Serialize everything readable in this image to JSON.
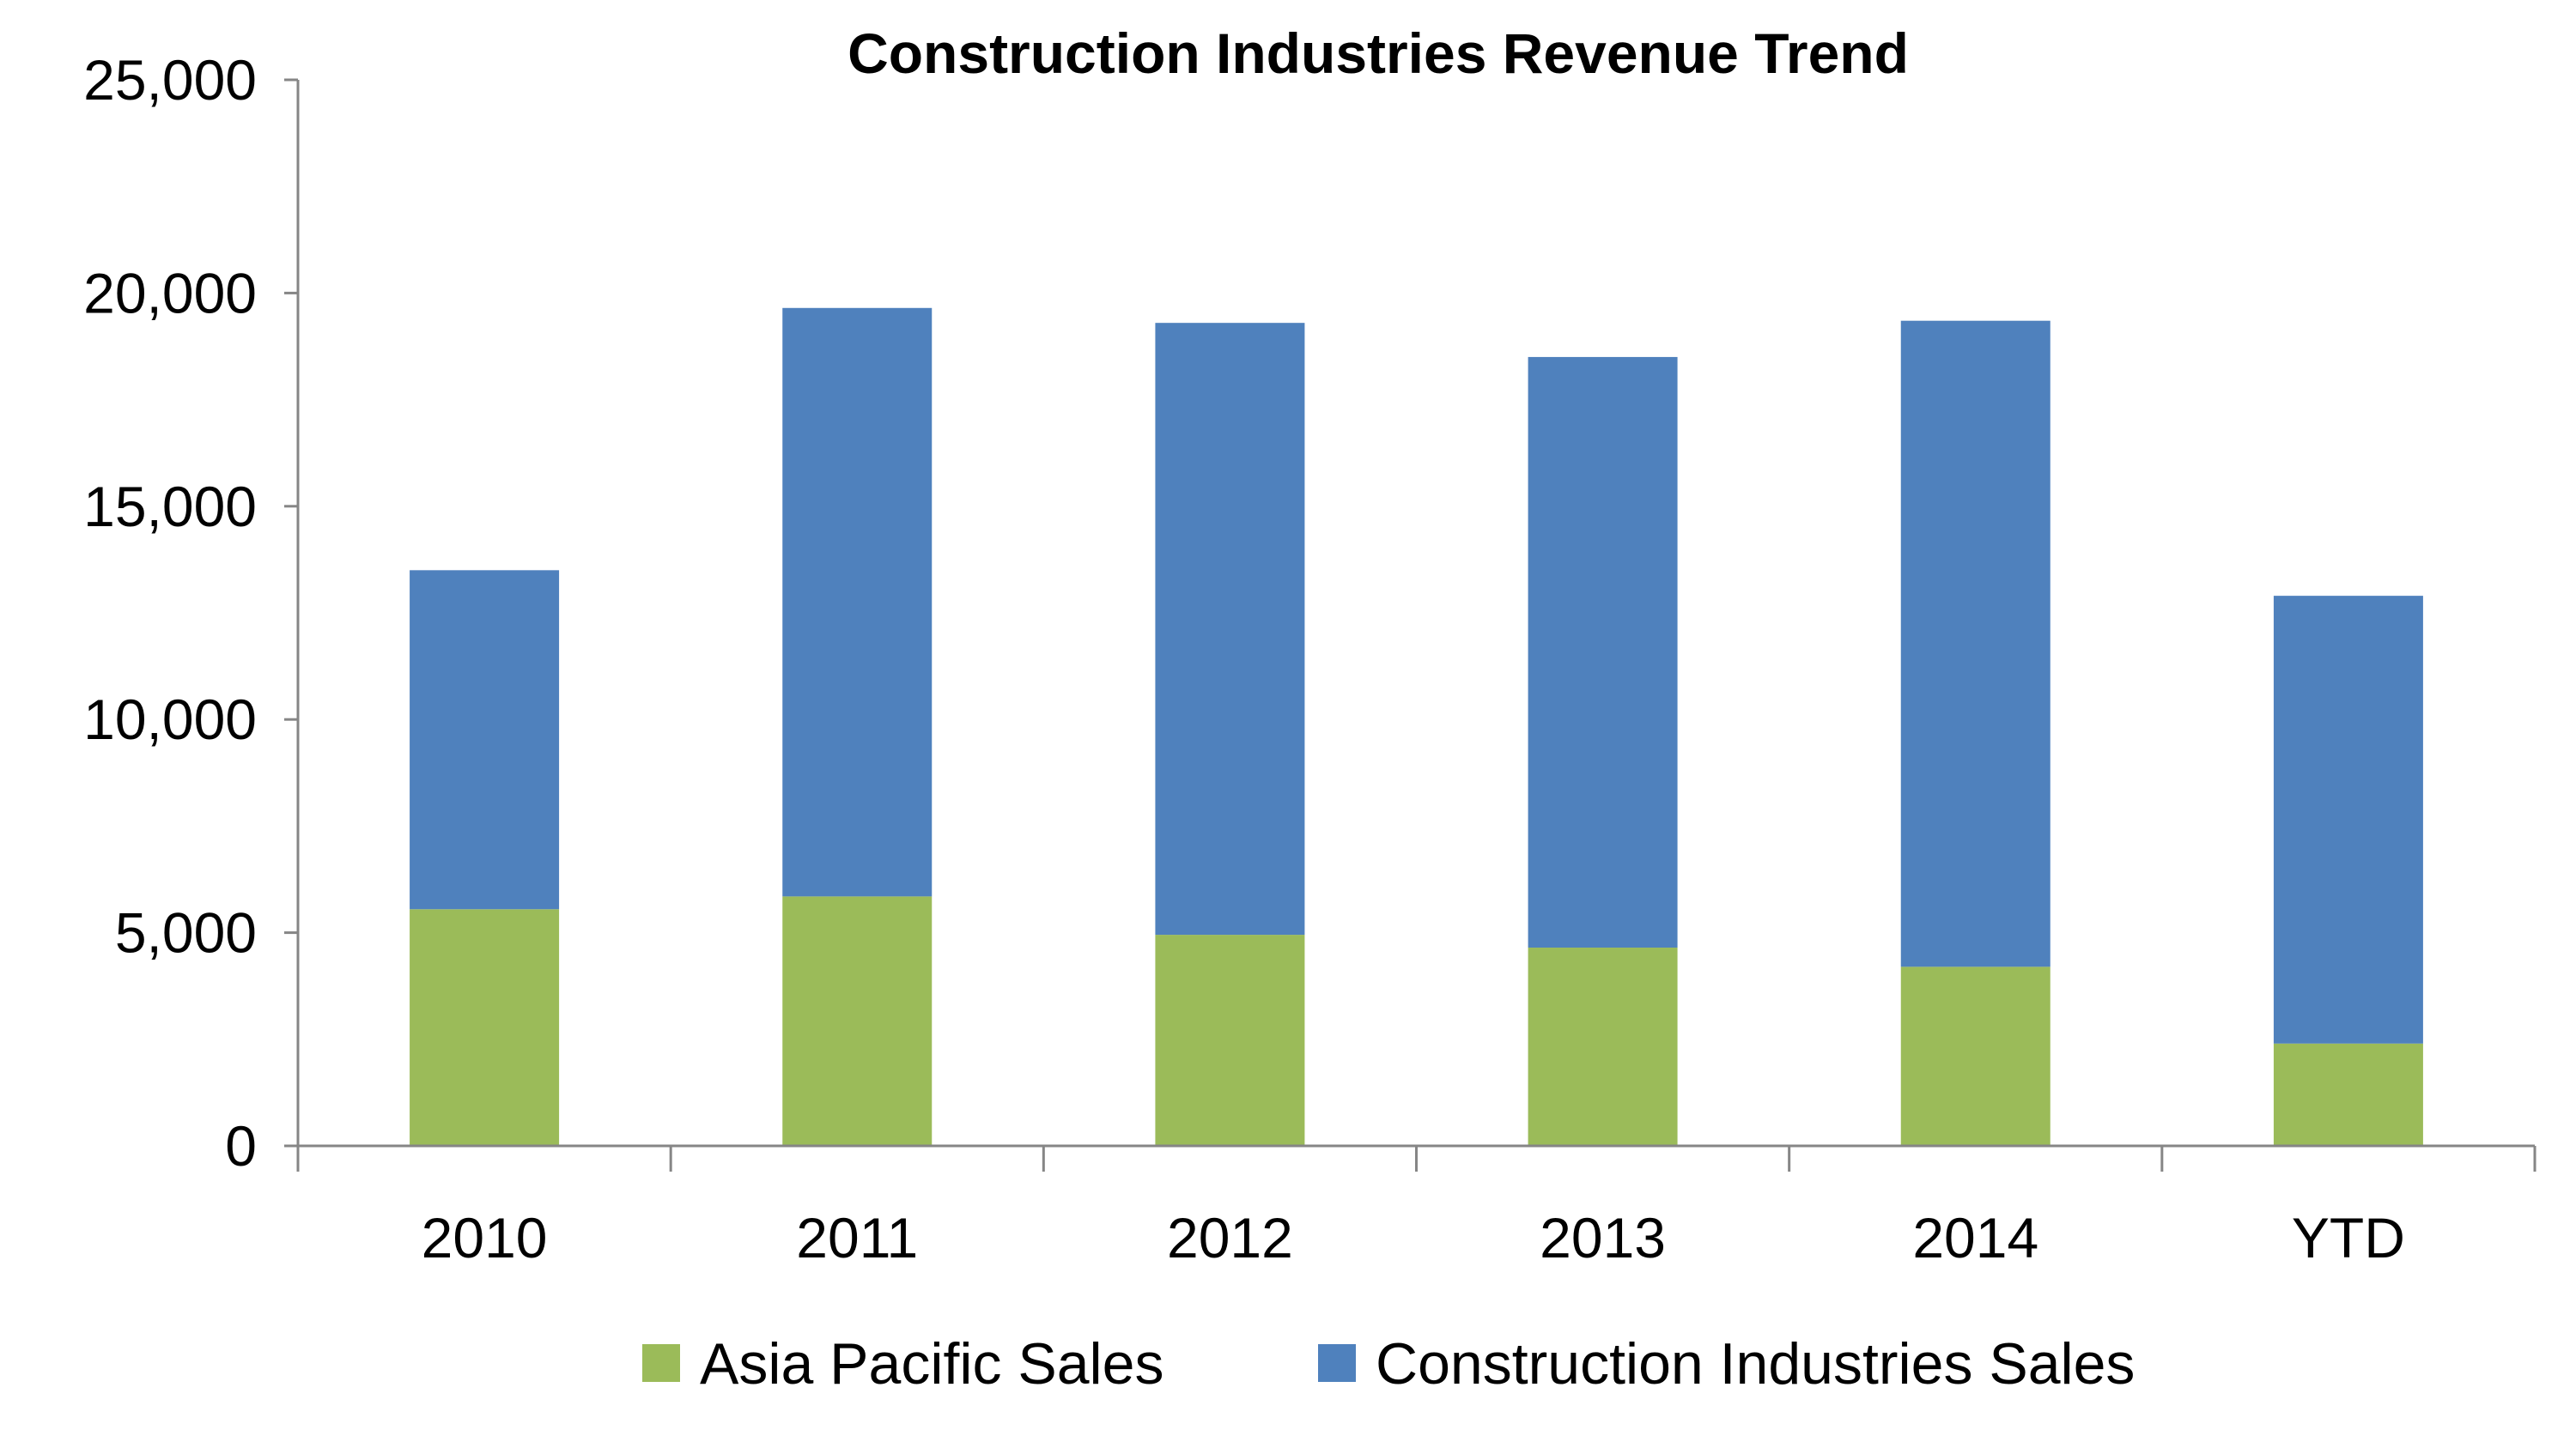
{
  "chart_data": {
    "type": "bar",
    "stacked": true,
    "title": "Construction Industries Revenue Trend",
    "xlabel": "",
    "ylabel": "",
    "categories": [
      "2010",
      "2011",
      "2012",
      "2013",
      "2014",
      "YTD"
    ],
    "series": [
      {
        "name": "Asia Pacific Sales",
        "color": "#9BBB59",
        "values": [
          5550,
          5850,
          4950,
          4650,
          4200,
          2400
        ]
      },
      {
        "name": "Construction Industries Sales",
        "color": "#4F81BD",
        "values": [
          7950,
          13800,
          14350,
          13850,
          15150,
          10500
        ]
      }
    ],
    "ylim": [
      0,
      25000
    ],
    "yticks": [
      "0",
      "5,000",
      "10,000",
      "15,000",
      "20,000",
      "25,000"
    ],
    "grid": false,
    "legend_position": "bottom"
  }
}
